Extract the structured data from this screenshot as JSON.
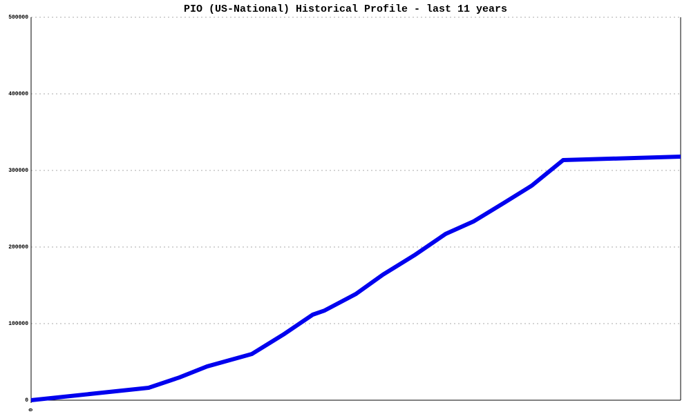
{
  "chart_data": {
    "type": "line",
    "title": "PIO (US-National) Historical Profile - last 11 years",
    "x": [
      0,
      1.99,
      2.51,
      2.98,
      3.74,
      4.27,
      4.77,
      4.97,
      5.5,
      5.96,
      6.49,
      7.02,
      7.49,
      8.01,
      8.48,
      9.01,
      11
    ],
    "series": [
      {
        "color": "#0000ee",
        "values": [
          0,
          16200,
          29700,
          44100,
          60400,
          85600,
          111700,
          117100,
          138700,
          164000,
          189200,
          217100,
          233300,
          257700,
          280200,
          313500,
          318000
        ]
      }
    ],
    "xlim": [
      0,
      11
    ],
    "xticks": [
      0
    ],
    "ylim": [
      0,
      500000
    ],
    "yticks": [
      0,
      100000,
      200000,
      300000,
      400000,
      500000
    ],
    "grid": true
  }
}
